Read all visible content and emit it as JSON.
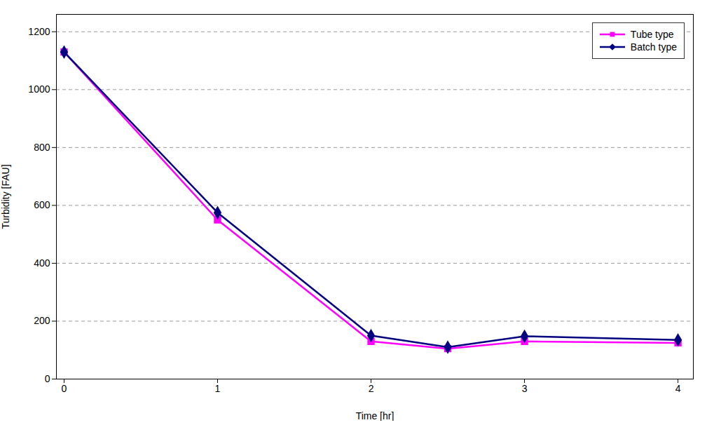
{
  "chart_data": {
    "type": "line",
    "x": [
      0,
      1,
      2,
      2.5,
      3,
      4
    ],
    "series": [
      {
        "name": "Tube type",
        "color": "#FF00FF",
        "marker": "square",
        "values": [
          1130,
          550,
          130,
          105,
          130,
          125
        ]
      },
      {
        "name": "Batch type",
        "color": "#000080",
        "marker": "diamond",
        "values": [
          1130,
          575,
          150,
          110,
          148,
          135
        ]
      }
    ],
    "xlabel": "Time [hr]",
    "ylabel": "Turbidity [FAU]",
    "xlim": [
      -0.05,
      4.1
    ],
    "ylim": [
      0,
      1260
    ],
    "xticks": [
      0,
      1,
      2,
      3,
      4
    ],
    "yticks": [
      0,
      200,
      400,
      600,
      800,
      1000,
      1200
    ],
    "grid": "y",
    "legend": "upper right"
  }
}
